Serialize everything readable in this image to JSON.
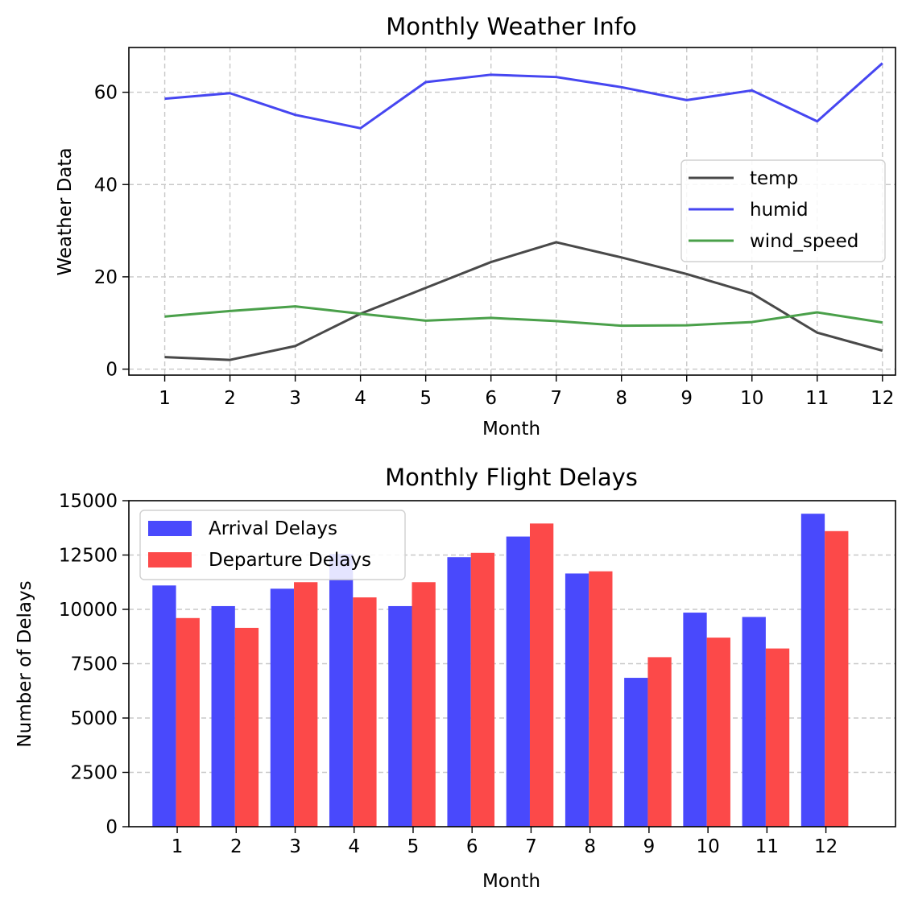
{
  "chart_data": [
    {
      "type": "line",
      "title": "Monthly Weather Info",
      "xlabel": "Month",
      "ylabel": "Weather Data",
      "x": [
        1,
        2,
        3,
        4,
        5,
        6,
        7,
        8,
        9,
        10,
        11,
        12
      ],
      "xticks": [
        "1",
        "2",
        "3",
        "4",
        "5",
        "6",
        "7",
        "8",
        "9",
        "10",
        "11",
        "12"
      ],
      "xlim": [
        0.45,
        12.2
      ],
      "ylim": [
        -1.3,
        69.7
      ],
      "yticks": [
        "0",
        "20",
        "40",
        "60"
      ],
      "grid": true,
      "legend_position": "center-right",
      "series": [
        {
          "name": "temp",
          "color": "#494949",
          "values": [
            2.6,
            2.0,
            5.0,
            12.0,
            17.6,
            23.2,
            27.5,
            24.2,
            20.6,
            16.4,
            7.9,
            4.0
          ]
        },
        {
          "name": "humid",
          "color": "#4646f1",
          "values": [
            58.6,
            59.8,
            55.1,
            52.2,
            62.2,
            63.8,
            63.3,
            61.1,
            58.3,
            60.4,
            53.7,
            66.3
          ]
        },
        {
          "name": "wind_speed",
          "color": "#4aa04a",
          "values": [
            11.4,
            12.6,
            13.6,
            12.0,
            10.5,
            11.1,
            10.4,
            9.4,
            9.5,
            10.2,
            12.3,
            10.1
          ]
        }
      ]
    },
    {
      "type": "bar",
      "title": "Monthly Flight Delays",
      "xlabel": "Month",
      "ylabel": "Number of Delays",
      "categories": [
        "1",
        "2",
        "3",
        "4",
        "5",
        "6",
        "7",
        "8",
        "9",
        "10",
        "11",
        "12"
      ],
      "xlim": [
        0.2,
        13.2
      ],
      "ylim": [
        0,
        15000
      ],
      "yticks": [
        "0",
        "2500",
        "5000",
        "7500",
        "10000",
        "12500",
        "15000"
      ],
      "grid": true,
      "legend_position": "top-left",
      "series": [
        {
          "name": "Arrival Delays",
          "color": "#4949fc",
          "values": [
            11100,
            10150,
            10950,
            12550,
            10150,
            12400,
            13350,
            11650,
            6850,
            9850,
            9650,
            14400
          ]
        },
        {
          "name": "Departure Delays",
          "color": "#fc4949",
          "values": [
            9600,
            9150,
            11250,
            10550,
            11250,
            12600,
            13950,
            11750,
            7800,
            8700,
            8200,
            13600
          ]
        }
      ]
    }
  ]
}
